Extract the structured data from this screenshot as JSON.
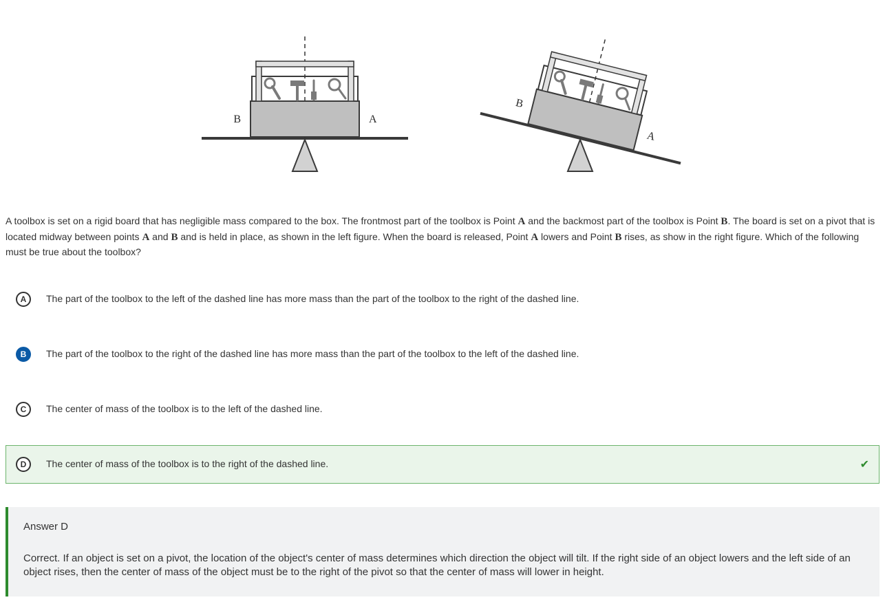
{
  "figure": {
    "left": {
      "label_left": "B",
      "label_right": "A",
      "rotation_deg": 0
    },
    "right": {
      "label_left": "B",
      "label_right": "A",
      "rotation_deg": 14
    },
    "colors": {
      "board": "#3a3a3a",
      "pivot_fill": "#d2d2d2",
      "pivot_stroke": "#3a3a3a",
      "box_fill": "#bfbfbf",
      "box_stroke": "#3a3a3a",
      "handle_fill": "#e2e2e2",
      "tools": "#7a7a7a",
      "dashed": "#333333",
      "label": "#2b2b2b"
    },
    "label_font_family": "Times New Roman, serif",
    "label_font_size": 16
  },
  "question": {
    "pre": "A toolbox is set on a rigid board that has negligible mass compared to the box. The frontmost part of the toolbox is Point ",
    "pt1": "A",
    "mid1": " and the backmost part of the toolbox is Point ",
    "pt2": "B",
    "mid2": ". The board is set on a pivot that is located midway between points ",
    "pt3": "A",
    "mid3": " and ",
    "pt4": "B",
    "mid4": " and is held in place, as shown in the left figure. When the board is released, Point ",
    "pt5": "A",
    "mid5": " lowers and Point ",
    "pt6": "B",
    "mid6": " rises, as show in the right figure. Which of the following must be true about the toolbox?"
  },
  "choices": [
    {
      "letter": "A",
      "text": "The part of the toolbox to the left of the dashed line has more mass than the part of the toolbox to the right of the dashed line.",
      "selected": false,
      "correct": false
    },
    {
      "letter": "B",
      "text": "The part of the toolbox to the right of the dashed line has more mass than the part of the toolbox to the left of the dashed line.",
      "selected": true,
      "correct": false
    },
    {
      "letter": "C",
      "text": "The center of mass of the toolbox is to the left of the dashed line.",
      "selected": false,
      "correct": false
    },
    {
      "letter": "D",
      "text": "The center of mass of the toolbox is to the right of the dashed line.",
      "selected": false,
      "correct": true
    }
  ],
  "explanation": {
    "heading": "Answer D",
    "body": "Correct. If an object is set on a pivot, the location of the object's center of mass determines which direction the object will tilt. If the right side of an object lowers and the left side of an object rises, then the center of mass of the object must be to the right of the pivot so that the center of mass will lower in height."
  }
}
